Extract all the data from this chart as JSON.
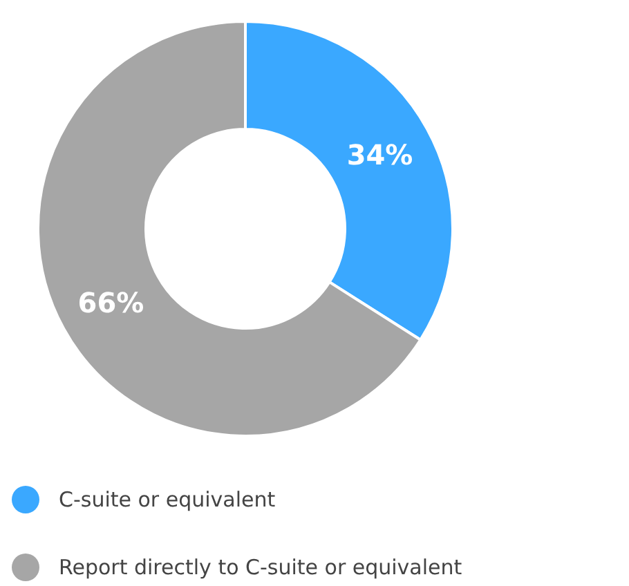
{
  "chart_data": {
    "type": "donut",
    "categories": [
      "C-suite or equivalent",
      "Report directly to C-suite or equivalent"
    ],
    "values": [
      34,
      66
    ],
    "colors": [
      "#3aa8ff",
      "#a6a6a6"
    ],
    "value_labels": [
      "34%",
      "66%"
    ],
    "legend": "bottom"
  }
}
